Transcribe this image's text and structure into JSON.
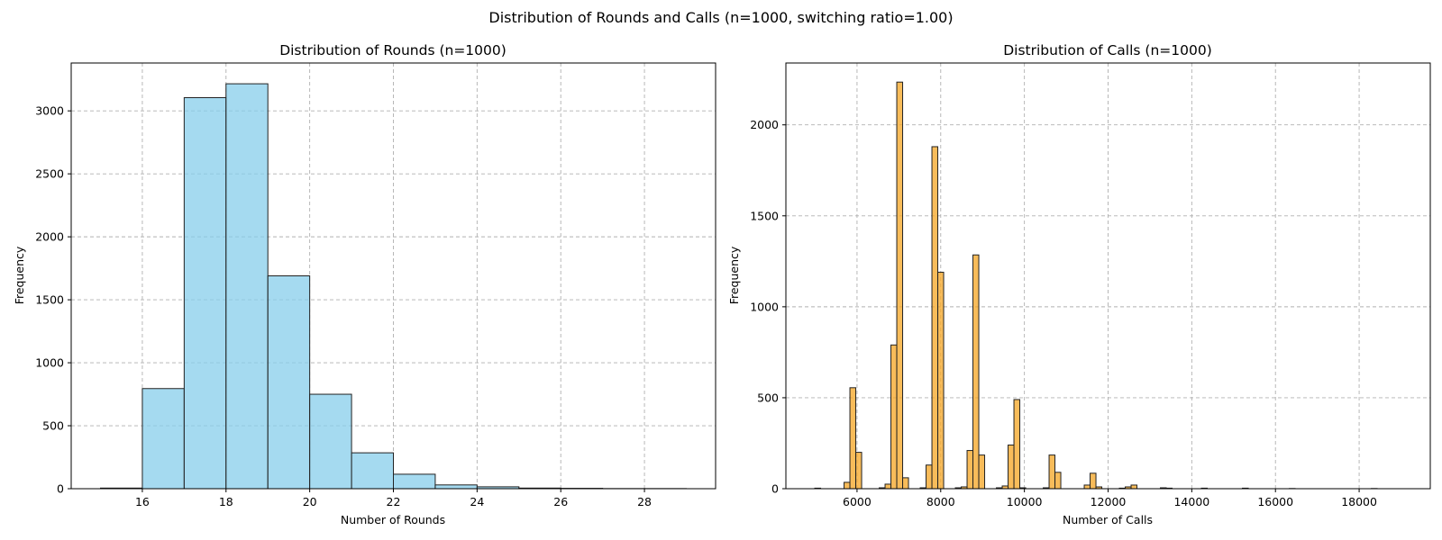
{
  "figure_title": "Distribution of Rounds and Calls (n=1000, switching ratio=1.00)",
  "chart_data": [
    {
      "type": "bar",
      "title": "Distribution of Rounds (n=1000)",
      "xlabel": "Number of Rounds",
      "ylabel": "Frequency",
      "xlim": [
        14.3,
        29.7
      ],
      "ylim": [
        0,
        3380
      ],
      "xticks": [
        16,
        18,
        20,
        22,
        24,
        26,
        28
      ],
      "yticks": [
        0,
        500,
        1000,
        1500,
        2000,
        2500,
        3000
      ],
      "grid": true,
      "color": "#87ceeb",
      "edgecolor": "#222222",
      "bins": [
        {
          "x0": 15,
          "x1": 16,
          "value": 5
        },
        {
          "x0": 16,
          "x1": 17,
          "value": 795
        },
        {
          "x0": 17,
          "x1": 18,
          "value": 3105
        },
        {
          "x0": 18,
          "x1": 19,
          "value": 3215
        },
        {
          "x0": 19,
          "x1": 20,
          "value": 1690
        },
        {
          "x0": 20,
          "x1": 21,
          "value": 750
        },
        {
          "x0": 21,
          "x1": 22,
          "value": 285
        },
        {
          "x0": 22,
          "x1": 23,
          "value": 115
        },
        {
          "x0": 23,
          "x1": 24,
          "value": 30
        },
        {
          "x0": 24,
          "x1": 25,
          "value": 15
        },
        {
          "x0": 25,
          "x1": 26,
          "value": 5
        },
        {
          "x0": 26,
          "x1": 27,
          "value": 3
        },
        {
          "x0": 27,
          "x1": 28,
          "value": 1
        },
        {
          "x0": 28,
          "x1": 29,
          "value": 1
        }
      ]
    },
    {
      "type": "bar",
      "title": "Distribution of Calls (n=1000)",
      "xlabel": "Number of Calls",
      "ylabel": "Frequency",
      "xlim": [
        4300,
        19700
      ],
      "ylim": [
        0,
        2340
      ],
      "xticks": [
        6000,
        8000,
        10000,
        12000,
        14000,
        16000,
        18000
      ],
      "yticks": [
        0,
        500,
        1000,
        1500,
        2000
      ],
      "grid": true,
      "color": "#f5a623",
      "edgecolor": "#222222",
      "bin_width": 140,
      "bins": [
        {
          "x0": 4990,
          "value": 3
        },
        {
          "x0": 5690,
          "value": 35
        },
        {
          "x0": 5830,
          "value": 555
        },
        {
          "x0": 5970,
          "value": 200
        },
        {
          "x0": 6530,
          "value": 5
        },
        {
          "x0": 6670,
          "value": 25
        },
        {
          "x0": 6810,
          "value": 790
        },
        {
          "x0": 6950,
          "value": 2235
        },
        {
          "x0": 7090,
          "value": 60
        },
        {
          "x0": 7510,
          "value": 5
        },
        {
          "x0": 7650,
          "value": 130
        },
        {
          "x0": 7790,
          "value": 1880
        },
        {
          "x0": 7930,
          "value": 1190
        },
        {
          "x0": 8350,
          "value": 5
        },
        {
          "x0": 8490,
          "value": 10
        },
        {
          "x0": 8630,
          "value": 210
        },
        {
          "x0": 8770,
          "value": 1285
        },
        {
          "x0": 8910,
          "value": 185
        },
        {
          "x0": 9330,
          "value": 5
        },
        {
          "x0": 9470,
          "value": 15
        },
        {
          "x0": 9610,
          "value": 240
        },
        {
          "x0": 9750,
          "value": 490
        },
        {
          "x0": 9890,
          "value": 5
        },
        {
          "x0": 10450,
          "value": 5
        },
        {
          "x0": 10590,
          "value": 185
        },
        {
          "x0": 10730,
          "value": 90
        },
        {
          "x0": 11430,
          "value": 20
        },
        {
          "x0": 11570,
          "value": 85
        },
        {
          "x0": 11710,
          "value": 10
        },
        {
          "x0": 12270,
          "value": 3
        },
        {
          "x0": 12410,
          "value": 10
        },
        {
          "x0": 12550,
          "value": 20
        },
        {
          "x0": 13250,
          "value": 5
        },
        {
          "x0": 13390,
          "value": 3
        },
        {
          "x0": 14230,
          "value": 3
        },
        {
          "x0": 15210,
          "value": 3
        },
        {
          "x0": 16330,
          "value": 1
        },
        {
          "x0": 18290,
          "value": 1
        }
      ]
    }
  ]
}
